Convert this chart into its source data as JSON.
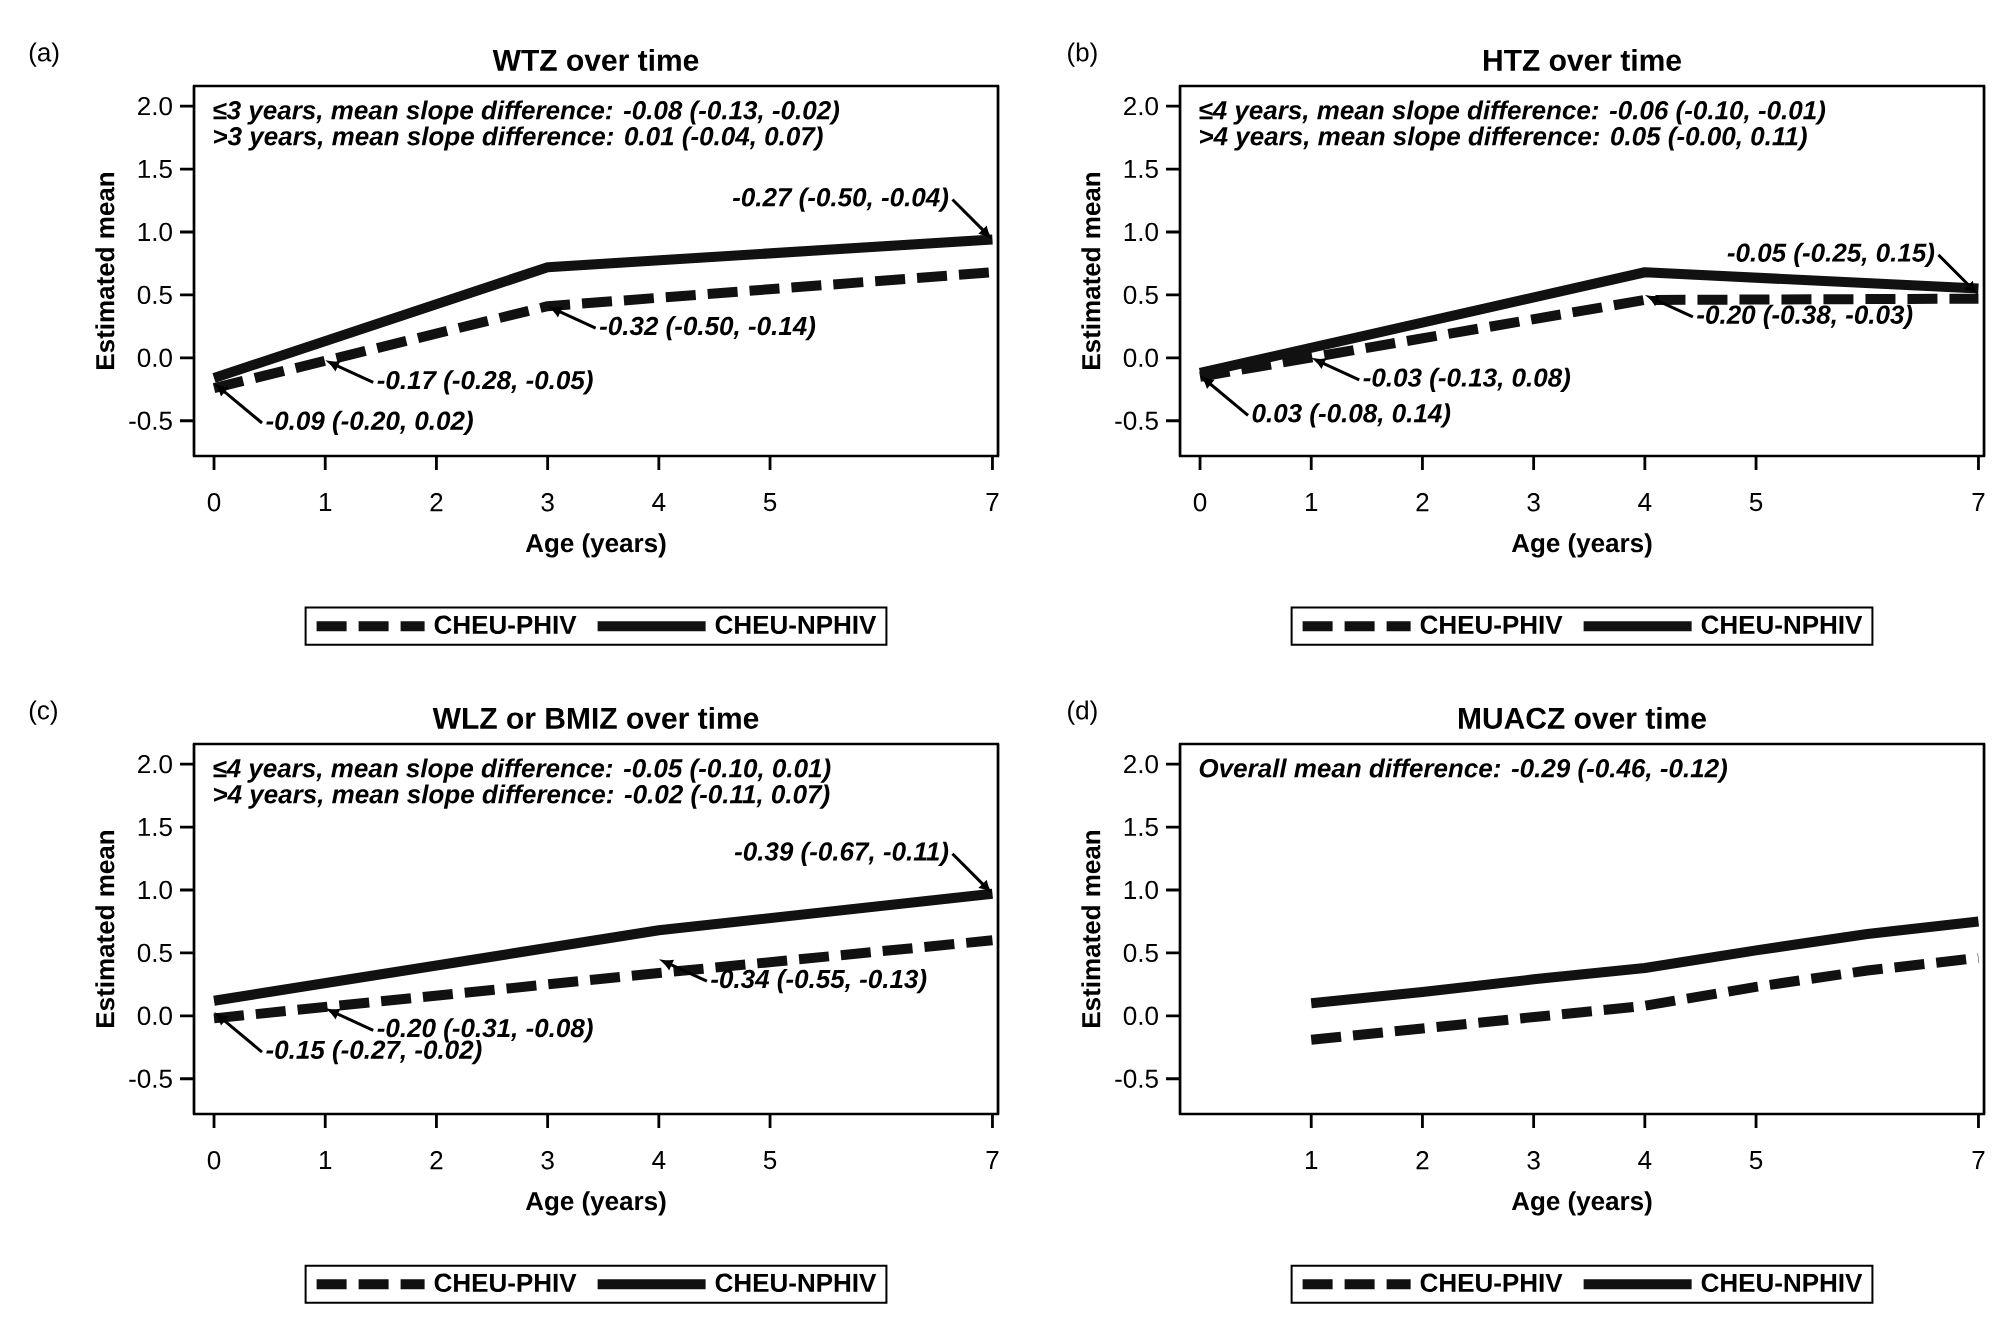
{
  "chart_data": [
    {
      "type": "line",
      "title": "WTZ over time",
      "xlabel": "Age (years)",
      "ylabel": "Estimated mean",
      "x": [
        0,
        3,
        7
      ],
      "xlim": [
        -0.18,
        7.05
      ],
      "xticks": [
        0,
        1,
        2,
        3,
        4,
        5,
        7
      ],
      "ylim": [
        -0.78,
        2.16
      ],
      "yticks": [
        {
          "value": -0.5,
          "label": "-0.5"
        },
        {
          "value": 0,
          "label": "0.0"
        },
        {
          "value": 0.5,
          "label": "0.5"
        },
        {
          "value": 1,
          "label": "1.0"
        },
        {
          "value": 1.5,
          "label": "1.5"
        },
        {
          "value": 2,
          "label": "2.0"
        }
      ],
      "legend": "bottom",
      "series": [
        {
          "name": "CHEU-PHIV",
          "color": "#111111",
          "line_style": "dashed",
          "values": [
            -0.24,
            0.41,
            0.68
          ]
        },
        {
          "name": "CHEU-NPHIV",
          "color": "#111111",
          "line_style": "solid",
          "values": [
            -0.16,
            0.72,
            0.94
          ]
        }
      ],
      "annotations": [
        "(a)",
        "≤3 years, mean slope difference: -0.08 (-0.13, -0.02)",
        ">3 years, mean slope difference: 0.01 (-0.04, 0.07)",
        {
          "text": "-0.09 (-0.20, 0.02)",
          "x": 0,
          "y": -0.2
        },
        {
          "text": "-0.17 (-0.28, -0.05)",
          "x": 1,
          "y": -0.02
        },
        {
          "text": "-0.32 (-0.50, -0.14)",
          "x": 3,
          "y": 0.41
        },
        {
          "text": "-0.27 (-0.50, -0.04)",
          "x": 7,
          "y": 0.94
        }
      ]
    },
    {
      "type": "line",
      "title": "HTZ over time",
      "xlabel": "Age (years)",
      "ylabel": "Estimated mean",
      "x": [
        0,
        4,
        7
      ],
      "xlim": [
        -0.18,
        7.05
      ],
      "xticks": [
        0,
        1,
        2,
        3,
        4,
        5,
        7
      ],
      "ylim": [
        -0.78,
        2.16
      ],
      "yticks": [
        {
          "value": -0.5,
          "label": "-0.5"
        },
        {
          "value": 0,
          "label": "0.0"
        },
        {
          "value": 0.5,
          "label": "0.5"
        },
        {
          "value": 1,
          "label": "1.0"
        },
        {
          "value": 1.5,
          "label": "1.5"
        },
        {
          "value": 2,
          "label": "2.0"
        }
      ],
      "legend": "bottom",
      "series": [
        {
          "name": "CHEU-PHIV",
          "color": "#111111",
          "line_style": "dashed",
          "values": [
            -0.15,
            0.46,
            0.47
          ]
        },
        {
          "name": "CHEU-NPHIV",
          "color": "#111111",
          "line_style": "solid",
          "values": [
            -0.12,
            0.68,
            0.55
          ]
        }
      ],
      "annotations": [
        "(b)",
        "≤4 years, mean slope difference: -0.06 (-0.10, -0.01)",
        ">4 years, mean slope difference: 0.05 (-0.00, 0.11)",
        {
          "text": "0.03 (-0.08, 0.14)",
          "x": 0,
          "y": -0.14
        },
        {
          "text": "-0.03 (-0.13, 0.08)",
          "x": 1,
          "y": 0.0
        },
        {
          "text": "-0.20 (-0.38, -0.03)",
          "x": 4,
          "y": 0.5
        },
        {
          "text": "-0.05 (-0.25, 0.15)",
          "x": 7,
          "y": 0.5
        }
      ]
    },
    {
      "type": "line",
      "title": "WLZ or BMIZ over time",
      "xlabel": "Age (years)",
      "ylabel": "Estimated mean",
      "x": [
        0,
        4,
        7
      ],
      "xlim": [
        -0.18,
        7.05
      ],
      "xticks": [
        0,
        1,
        2,
        3,
        4,
        5,
        7
      ],
      "ylim": [
        -0.78,
        2.16
      ],
      "yticks": [
        {
          "value": -0.5,
          "label": "-0.5"
        },
        {
          "value": 0,
          "label": "0.0"
        },
        {
          "value": 0.5,
          "label": "0.5"
        },
        {
          "value": 1,
          "label": "1.0"
        },
        {
          "value": 1.5,
          "label": "1.5"
        },
        {
          "value": 2,
          "label": "2.0"
        }
      ],
      "legend": "bottom",
      "series": [
        {
          "name": "CHEU-PHIV",
          "color": "#111111",
          "line_style": "dashed",
          "values": [
            -0.02,
            0.34,
            0.6
          ]
        },
        {
          "name": "CHEU-NPHIV",
          "color": "#111111",
          "line_style": "solid",
          "values": [
            0.12,
            0.68,
            0.97
          ]
        }
      ],
      "annotations": [
        "(c)",
        "≤4 years, mean slope difference: -0.05 (-0.10, 0.01)",
        ">4 years, mean slope difference: -0.02 (-0.11, 0.07)",
        {
          "text": "-0.15 (-0.27, -0.02)",
          "x": 0,
          "y": 0.03
        },
        {
          "text": "-0.20 (-0.31, -0.08)",
          "x": 1,
          "y": 0.06
        },
        {
          "text": "-0.34 (-0.55, -0.13)",
          "x": 4,
          "y": 0.45
        },
        {
          "text": "-0.39 (-0.67, -0.11)",
          "x": 7,
          "y": 0.97
        }
      ]
    },
    {
      "type": "line",
      "title": "MUACZ over time",
      "xlabel": "Age (years)",
      "ylabel": "Estimated mean",
      "x": [
        1,
        2,
        3,
        4,
        5,
        6,
        7
      ],
      "xlim": [
        -0.18,
        7.05
      ],
      "xticks": [
        1,
        2,
        3,
        4,
        5,
        7
      ],
      "ylim": [
        -0.78,
        2.16
      ],
      "yticks": [
        {
          "value": -0.5,
          "label": "-0.5"
        },
        {
          "value": 0,
          "label": "0.0"
        },
        {
          "value": 0.5,
          "label": "0.5"
        },
        {
          "value": 1,
          "label": "1.0"
        },
        {
          "value": 1.5,
          "label": "1.5"
        },
        {
          "value": 2,
          "label": "2.0"
        }
      ],
      "legend": "bottom",
      "series": [
        {
          "name": "CHEU-PHIV",
          "color": "#111111",
          "line_style": "dashed",
          "values": [
            -0.19,
            -0.1,
            -0.01,
            0.08,
            0.23,
            0.36,
            0.46
          ]
        },
        {
          "name": "CHEU-NPHIV",
          "color": "#111111",
          "line_style": "solid",
          "values": [
            0.1,
            0.19,
            0.29,
            0.38,
            0.52,
            0.65,
            0.75
          ]
        }
      ],
      "annotations": [
        "(d)",
        "Overall mean difference: -0.29 (-0.46, -0.12)"
      ]
    }
  ]
}
